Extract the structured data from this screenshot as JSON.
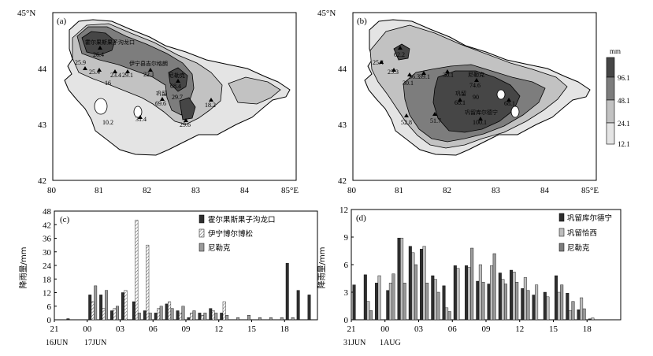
{
  "colors": {
    "c1": "#e4e4e4",
    "c2": "#c2c2c2",
    "c3": "#7d7d7d",
    "c4": "#464646",
    "series_dark": "#2e2e2e",
    "series_mid": "#9a9a9a",
    "series_hatch": "#ffffff"
  },
  "maps": {
    "lat_labels": [
      "45°N",
      "44",
      "43",
      "42"
    ],
    "lon_labels": [
      "80",
      "81",
      "82",
      "83",
      "84",
      "85°E"
    ],
    "legend": {
      "unit": "mm",
      "levels": [
        "96.1",
        "48.1",
        "24.1",
        "12.1"
      ]
    },
    "a": {
      "panel_label": "(a)",
      "stations": [
        {
          "name": "霍尔果斯果子沟龙口",
          "value": "26.4"
        },
        {
          "name": "伊宁县吉尔格朗",
          "value": "22.1"
        },
        {
          "name": "",
          "value": "25.9"
        },
        {
          "name": "",
          "value": "25.4"
        },
        {
          "name": "",
          "value": "23.4"
        },
        {
          "name": "",
          "value": "29.1"
        },
        {
          "name": "",
          "value": "16"
        },
        {
          "name": "尼勒克",
          "value": "68.4"
        },
        {
          "name": "",
          "value": "29.7"
        },
        {
          "name": "巩留",
          "value": "69.6"
        },
        {
          "name": "",
          "value": "18.2"
        },
        {
          "name": "",
          "value": "10.2"
        },
        {
          "name": "",
          "value": "31.4"
        },
        {
          "name": "",
          "value": "29.6"
        }
      ]
    },
    "b": {
      "panel_label": "(b)",
      "stations": [
        {
          "name": "",
          "value": "62.2"
        },
        {
          "name": "",
          "value": "25.4"
        },
        {
          "name": "",
          "value": "25.3"
        },
        {
          "name": "",
          "value": "30.1"
        },
        {
          "name": "",
          "value": "36.3"
        },
        {
          "name": "",
          "value": "39.1"
        },
        {
          "name": "",
          "value": "30.1"
        },
        {
          "name": "尼勒克",
          "value": "74.6"
        },
        {
          "name": "巩留",
          "value": "68.1"
        },
        {
          "name": "",
          "value": "90"
        },
        {
          "name": "巩留库尔德宁",
          "value": "100.1"
        },
        {
          "name": "",
          "value": "68.1"
        },
        {
          "name": "",
          "value": "52.8"
        },
        {
          "name": "",
          "value": "51.7"
        }
      ]
    }
  },
  "chart_data": [
    {
      "type": "bar",
      "panel_label": "(c)",
      "ylabel": "降雨量/mm",
      "ylim": [
        0,
        48
      ],
      "yticks": [
        "0",
        "6",
        "12",
        "18",
        "24",
        "30",
        "36",
        "42",
        "48"
      ],
      "xticks": [
        "21",
        "00",
        "03",
        "06",
        "09",
        "12",
        "15",
        "18"
      ],
      "xtick_sublabels": [
        "16JUN",
        "17JUN"
      ],
      "legend_position": "right",
      "categories": [
        "21",
        "22",
        "23",
        "00",
        "01",
        "02",
        "03",
        "04",
        "05",
        "06",
        "07",
        "08",
        "09",
        "10",
        "11",
        "12",
        "13",
        "14",
        "15",
        "16",
        "17",
        "18",
        "19",
        "20"
      ],
      "series": [
        {
          "name": "霍尔果斯果子沟龙口",
          "style": "dark",
          "values": [
            0,
            0.5,
            0,
            11,
            11,
            4,
            12,
            8,
            4,
            3,
            7,
            4,
            1,
            3,
            5,
            3,
            0,
            0,
            0,
            0,
            0,
            25,
            13,
            11
          ]
        },
        {
          "name": "伊宁博尔博松",
          "style": "hatch",
          "values": [
            0,
            0,
            0,
            8,
            5,
            5,
            13,
            44,
            33,
            5,
            8,
            3,
            3,
            2,
            4,
            8,
            0,
            0,
            0,
            0,
            0,
            0,
            0,
            0
          ]
        },
        {
          "name": "尼勒克",
          "style": "mid",
          "values": [
            0,
            0,
            0,
            15,
            13,
            6,
            0,
            3,
            3,
            6,
            5,
            6,
            4,
            3,
            3,
            2,
            1,
            2,
            1,
            1,
            1,
            1,
            0,
            0
          ]
        }
      ]
    },
    {
      "type": "bar",
      "panel_label": "(d)",
      "ylabel": "降雨量/mm",
      "ylim": [
        0,
        12
      ],
      "yticks": [
        "0",
        "3",
        "6",
        "9",
        "12"
      ],
      "xticks": [
        "21",
        "00",
        "03",
        "06",
        "09",
        "12",
        "15",
        "18"
      ],
      "xtick_sublabels": [
        "31JUN",
        "1AUG"
      ],
      "legend_position": "right",
      "categories": [
        "21",
        "22",
        "23",
        "00",
        "01",
        "02",
        "03",
        "04",
        "05",
        "06",
        "07",
        "08",
        "09",
        "10",
        "11",
        "12",
        "13",
        "14",
        "15",
        "16",
        "17",
        "18",
        "19",
        "20"
      ],
      "series": [
        {
          "name": "巩留库尔德宁",
          "style": "dark",
          "values": [
            3.8,
            4.9,
            4.0,
            3.2,
            8.9,
            8.0,
            7.7,
            4.8,
            3.7,
            5.9,
            5.9,
            4.2,
            3.9,
            5.1,
            5.4,
            3.4,
            2.7,
            3.0,
            4.8,
            2.9,
            1.1,
            0.1,
            0,
            0
          ]
        },
        {
          "name": "巩留恰西",
          "style": "light",
          "values": [
            0,
            2.0,
            4.8,
            4.0,
            8.9,
            7.3,
            8.0,
            4.4,
            1.3,
            5.6,
            5.7,
            6.0,
            5.9,
            4.4,
            5.2,
            4.6,
            3.8,
            2.5,
            3.0,
            1.0,
            2.4,
            0.2,
            0,
            0
          ]
        },
        {
          "name": "尼勒克",
          "style": "mid",
          "values": [
            0,
            1.0,
            0,
            5.0,
            4.0,
            6.0,
            4.0,
            3.0,
            0.9,
            0,
            7.8,
            4.1,
            7.2,
            3.9,
            4.1,
            3.2,
            0,
            0,
            3.8,
            2.0,
            1.2,
            0,
            0,
            0
          ]
        }
      ]
    }
  ]
}
